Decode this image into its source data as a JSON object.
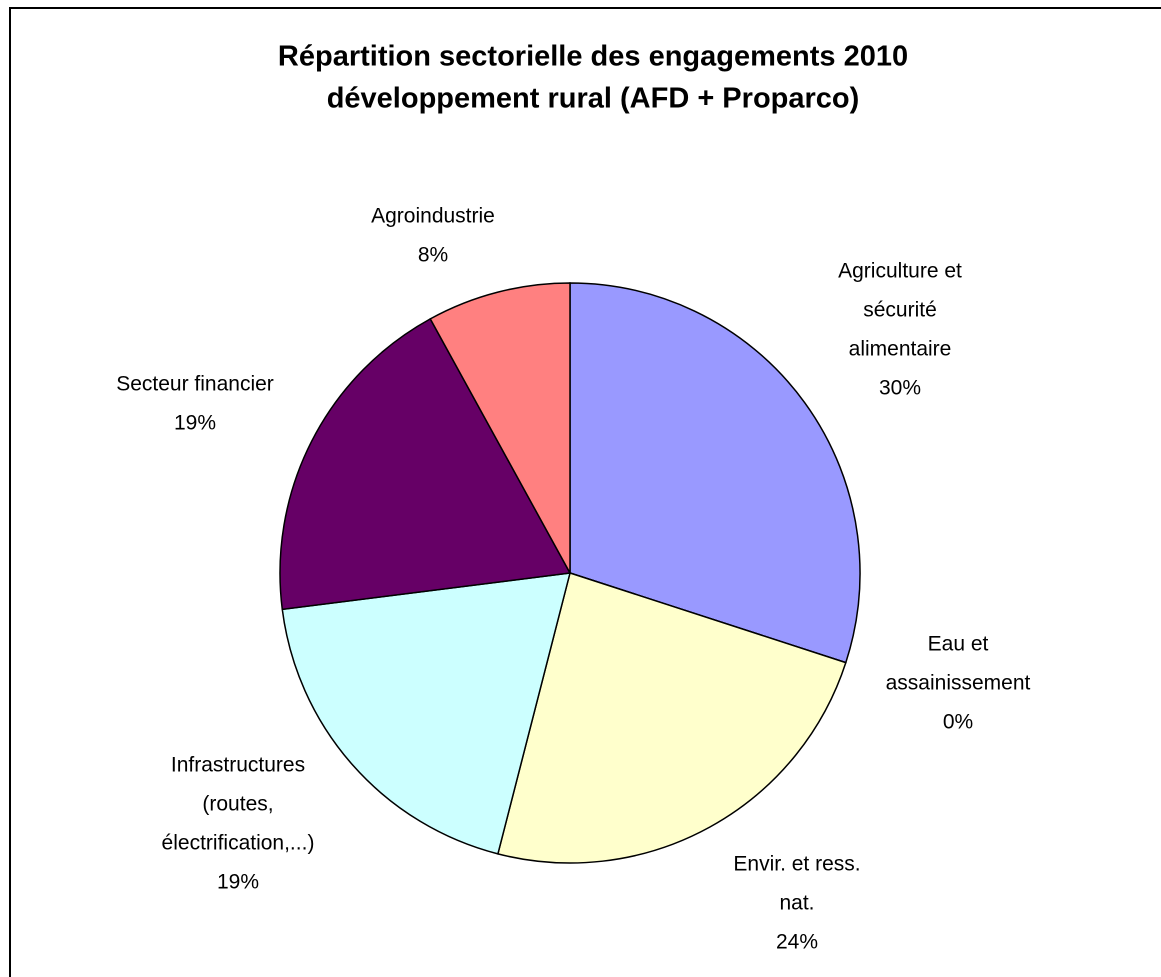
{
  "chart_data": {
    "type": "pie",
    "title": [
      "Répartition sectorielle des engagements 2010",
      "développement rural (AFD + Proparco)"
    ],
    "categories": [
      [
        "Agriculture et",
        "sécurité",
        "alimentaire"
      ],
      [
        "Eau et",
        "assainissement"
      ],
      [
        "Envir. et ress.",
        "nat."
      ],
      [
        "Infrastructures",
        "(routes,",
        "électrification,...)"
      ],
      [
        "Secteur financier"
      ],
      [
        "Agroindustrie"
      ]
    ],
    "values": [
      30,
      0,
      24,
      19,
      19,
      8
    ],
    "value_labels": [
      "30%",
      "0%",
      "24%",
      "19%",
      "19%",
      "8%"
    ],
    "colors": [
      "#9999ff",
      "#993366",
      "#ffffcc",
      "#ccffff",
      "#660066",
      "#ff8080"
    ]
  }
}
